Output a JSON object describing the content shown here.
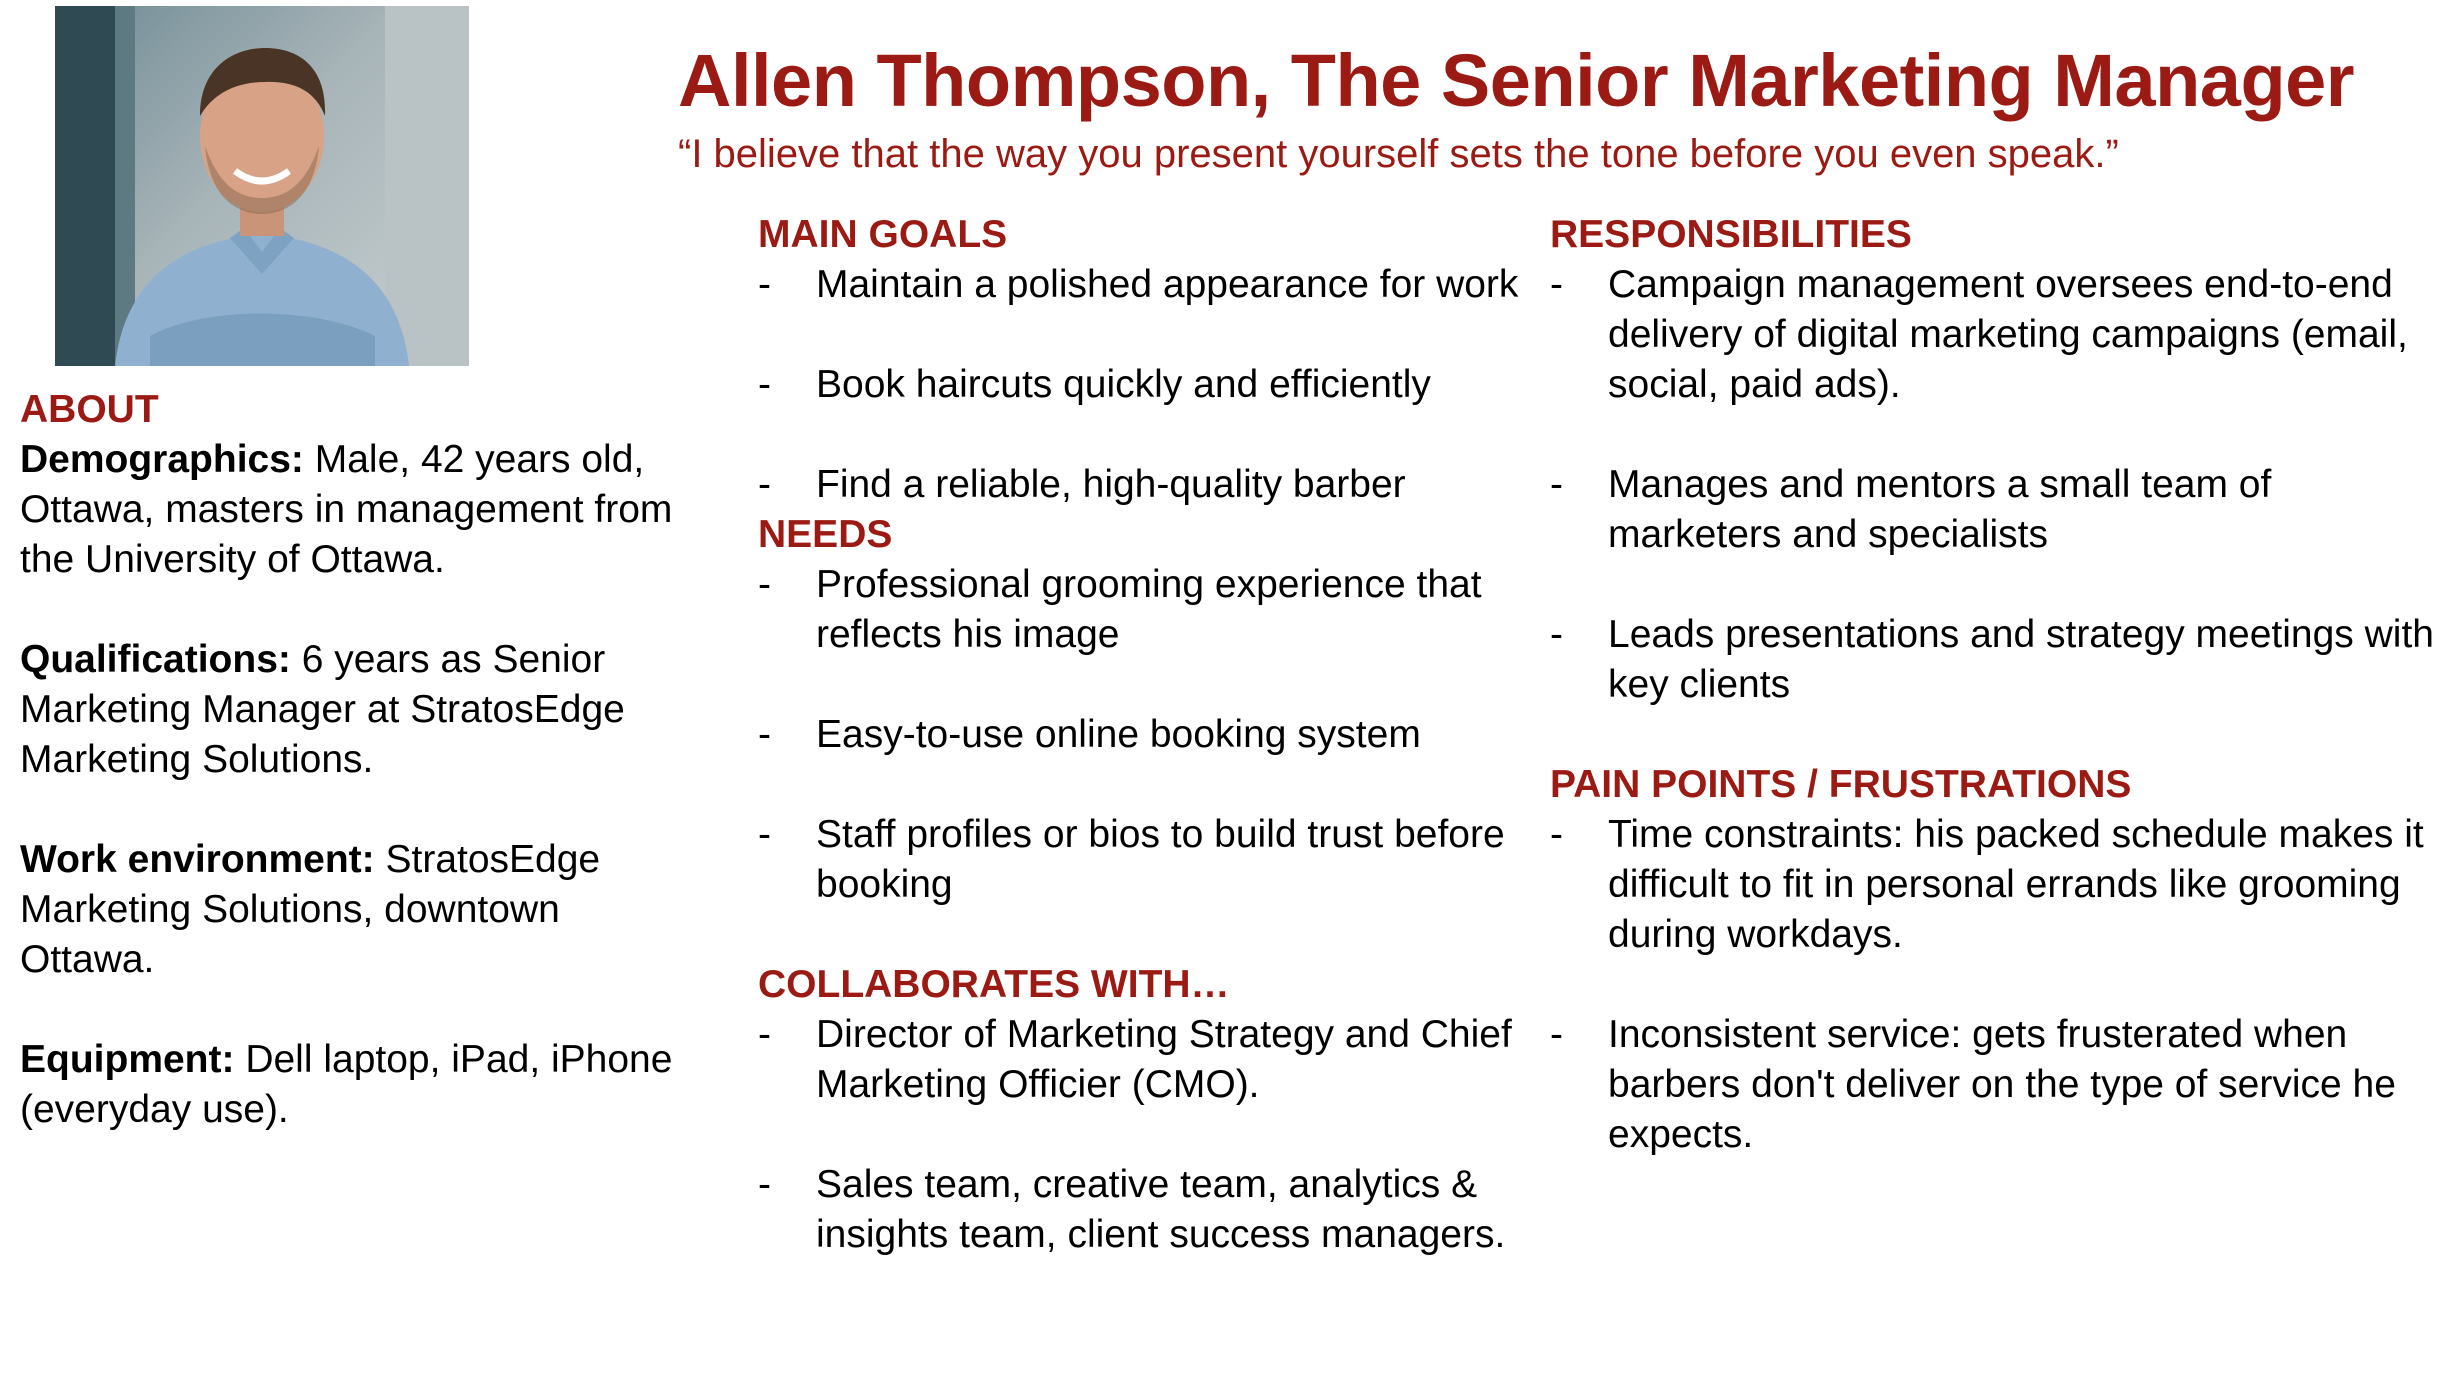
{
  "header": {
    "title": "Allen Thompson, The Senior Marketing Manager",
    "quote": "“I believe that the way you present yourself sets the tone before you even speak.”"
  },
  "photo": {
    "icon": "person-photo"
  },
  "about": {
    "heading": "ABOUT",
    "items": [
      {
        "label": "Demographics:",
        "text": " Male, 42 years old, Ottawa, masters in management from the University of Ottawa."
      },
      {
        "label": "Qualifications:",
        "text": " 6 years as Senior Marketing Manager at StratosEdge Marketing Solutions."
      },
      {
        "label": "Work environment:",
        "text": " StratosEdge Marketing Solutions, downtown Ottawa."
      },
      {
        "label": "Equipment:",
        "text": " Dell laptop, iPad, iPhone (everyday use)."
      }
    ]
  },
  "main_goals": {
    "heading": "MAIN GOALS",
    "items": [
      "Maintain a polished appearance for work",
      "Book haircuts quickly and efficiently",
      "Find a reliable, high-quality barber"
    ]
  },
  "needs": {
    "heading": "NEEDS",
    "items": [
      "Professional grooming experience that reflects his image",
      "Easy-to-use online booking system",
      "Staff profiles or bios to build trust before booking"
    ]
  },
  "collaborates": {
    "heading": "COLLABORATES WITH…",
    "items": [
      "Director of Marketing Strategy and Chief Marketing Officier (CMO).",
      "Sales team, creative team, analytics & insights team, client success managers."
    ]
  },
  "responsibilities": {
    "heading": "RESPONSIBILITIES",
    "items": [
      "Campaign management oversees end-to-end delivery of digital marketing campaigns (email, social, paid ads).",
      "Manages and mentors a small team of marketers and specialists",
      "Leads presentations and strategy meetings with key clients"
    ]
  },
  "pain_points": {
    "heading": "PAIN POINTS / FRUSTRATIONS",
    "items": [
      "Time constraints: his packed schedule makes it difficult to fit in personal errands like grooming during workdays.",
      "Inconsistent service: gets frusterated when barbers don't deliver on the type of service he expects."
    ]
  },
  "bullet": "-",
  "colors": {
    "accent": "#9b1a13",
    "text": "#000000"
  }
}
